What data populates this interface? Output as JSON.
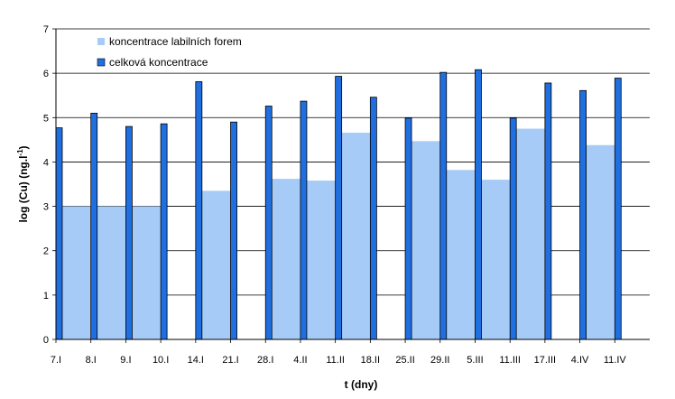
{
  "chart_data": {
    "type": "bar",
    "title": "",
    "xlabel": "t (dny)",
    "ylabel_main": "log (Cu) (ng.l",
    "ylabel_sup": "-1",
    "ylabel_close": ")",
    "ylim": [
      0,
      7
    ],
    "yticks": [
      0,
      1,
      2,
      3,
      4,
      5,
      6,
      7
    ],
    "grid": true,
    "legend_position": "top-left",
    "categories": [
      "7.I",
      "8.I",
      "9.I",
      "10.I",
      "14.I",
      "21.I",
      "28.I",
      "4.II",
      "11.II",
      "18.II",
      "25.II",
      "29.II",
      "5.III",
      "11.III",
      "17.III",
      "4.IV",
      "11.IV"
    ],
    "series": [
      {
        "name": "koncentrace labilních forem",
        "color": "#a6cbf7",
        "values": [
          3.0,
          3.0,
          3.0,
          null,
          3.35,
          null,
          3.62,
          3.58,
          4.66,
          null,
          4.47,
          3.82,
          3.6,
          4.75,
          null,
          4.38,
          null
        ]
      },
      {
        "name": "celková koncentrace",
        "color": "#1f6fe0",
        "values": [
          4.77,
          5.1,
          4.8,
          4.86,
          5.81,
          4.9,
          5.26,
          5.37,
          5.93,
          5.46,
          4.99,
          6.02,
          6.08,
          4.99,
          5.78,
          5.61,
          5.89
        ]
      }
    ]
  }
}
